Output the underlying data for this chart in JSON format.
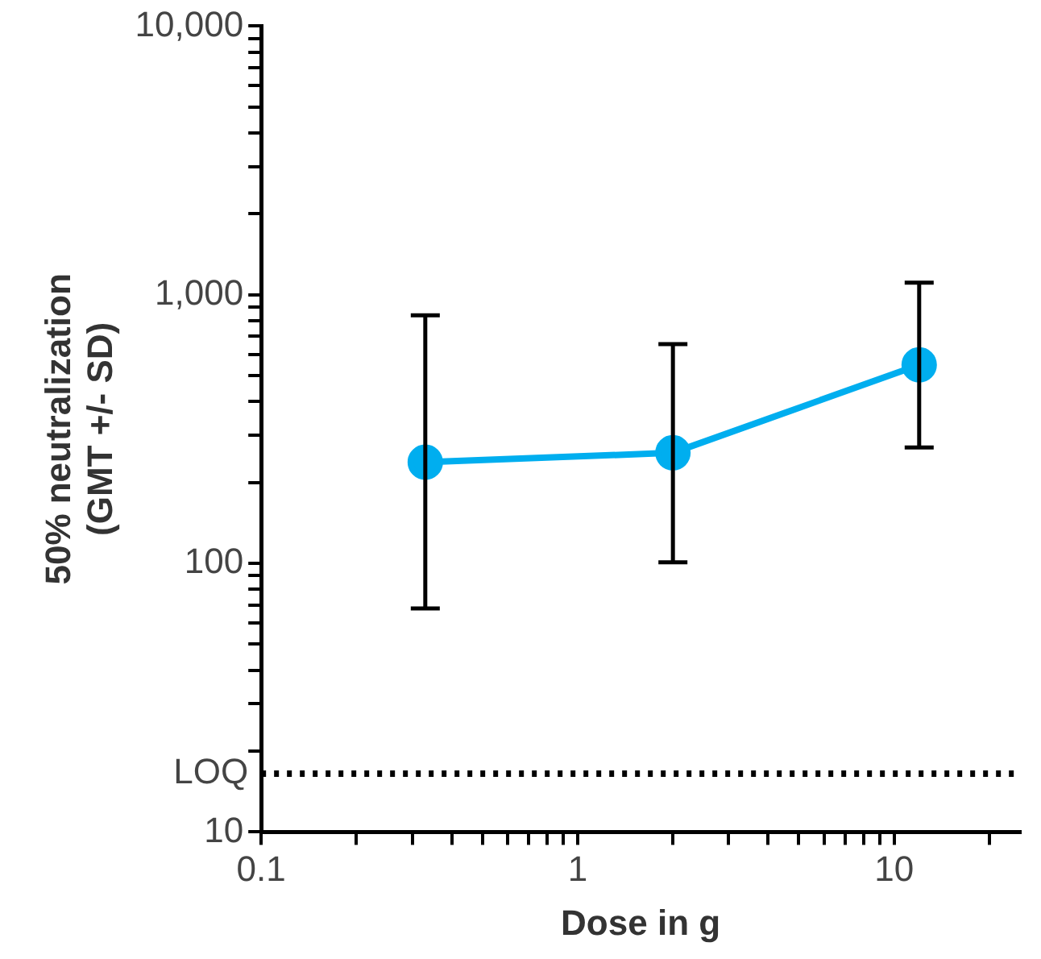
{
  "chart_data": {
    "type": "line",
    "ylabel": "50% neutralization\n(GMT +/- SD)",
    "xlabel": "Dose in g",
    "log": "xy",
    "grid": false,
    "legend": false,
    "marker": "circle",
    "line_style": "solid",
    "xlim": [
      0.1,
      25
    ],
    "ylim": [
      10,
      10000
    ],
    "xticks": [
      {
        "value": 0.1,
        "label": "0.1"
      },
      {
        "value": 0.2,
        "label": null
      },
      {
        "value": 0.3,
        "label": null
      },
      {
        "value": 0.4,
        "label": null
      },
      {
        "value": 0.5,
        "label": null
      },
      {
        "value": 0.6,
        "label": null
      },
      {
        "value": 0.7,
        "label": null
      },
      {
        "value": 0.8,
        "label": null
      },
      {
        "value": 0.9,
        "label": null
      },
      1,
      {
        "value": 2,
        "label": null
      },
      {
        "value": 3,
        "label": null
      },
      {
        "value": 4,
        "label": null
      },
      {
        "value": 5,
        "label": null
      },
      {
        "value": 6,
        "label": null
      },
      {
        "value": 7,
        "label": null
      },
      {
        "value": 8,
        "label": null
      },
      {
        "value": 9,
        "label": null
      },
      10,
      {
        "value": 20,
        "label": null
      }
    ],
    "yticks": [
      10,
      {
        "value": 20,
        "label": null
      },
      {
        "value": 30,
        "label": null
      },
      {
        "value": 40,
        "label": null
      },
      {
        "value": 50,
        "label": null
      },
      {
        "value": 60,
        "label": null
      },
      {
        "value": 70,
        "label": null
      },
      {
        "value": 80,
        "label": null
      },
      {
        "value": 90,
        "label": null
      },
      100,
      {
        "value": 200,
        "label": null
      },
      {
        "value": 300,
        "label": null
      },
      {
        "value": 400,
        "label": null
      },
      {
        "value": 500,
        "label": null
      },
      {
        "value": 600,
        "label": null
      },
      {
        "value": 700,
        "label": null
      },
      {
        "value": 800,
        "label": null
      },
      {
        "value": 900,
        "label": null
      },
      {
        "value": 1000,
        "label": "1,000"
      },
      {
        "value": 2000,
        "label": null
      },
      {
        "value": 3000,
        "label": null
      },
      {
        "value": 4000,
        "label": null
      },
      {
        "value": 5000,
        "label": null
      },
      {
        "value": 6000,
        "label": null
      },
      {
        "value": 7000,
        "label": null
      },
      {
        "value": 8000,
        "label": null
      },
      {
        "value": 9000,
        "label": null
      },
      {
        "value": 10000,
        "label": "10,000"
      }
    ],
    "series": [
      {
        "color": "#00aeef",
        "x": [
          0.33,
          2,
          12
        ],
        "values": [
          238,
          258,
          548
        ],
        "errors": [
          [
            68,
            838
          ],
          [
            101,
            655
          ],
          [
            270,
            1109
          ]
        ]
      }
    ],
    "ref_lines": [
      {
        "axis": "y",
        "value": 16.5,
        "label": "LOQ",
        "color": "#000000",
        "line_style": "dotted"
      }
    ]
  }
}
